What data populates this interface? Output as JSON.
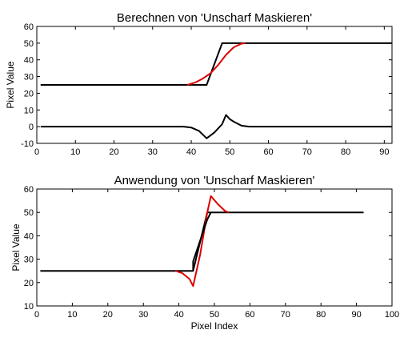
{
  "chart_data": [
    {
      "type": "line",
      "title": "Berechnen von 'Unscharf Maskieren'",
      "xlabel": "",
      "ylabel": "Pixel Value",
      "xlim": [
        0,
        92
      ],
      "ylim": [
        -10,
        60
      ],
      "xticks": [
        0,
        10,
        20,
        30,
        40,
        50,
        60,
        70,
        80,
        90
      ],
      "yticks": [
        -10,
        0,
        10,
        20,
        30,
        40,
        50,
        60
      ],
      "grid": false,
      "series": [
        {
          "color": "#000000",
          "x": [
            1,
            44,
            48,
            92
          ],
          "y": [
            25,
            25,
            50,
            50
          ]
        },
        {
          "color": "#dd0000",
          "x": [
            39,
            41,
            43,
            45,
            47,
            49,
            51,
            53,
            54
          ],
          "y": [
            25,
            26.4,
            28.8,
            32,
            37,
            43,
            47.5,
            49.7,
            50
          ]
        },
        {
          "color": "#000000",
          "x": [
            1,
            38,
            40,
            42,
            44,
            46,
            48,
            49,
            50,
            51,
            53,
            55,
            92
          ],
          "y": [
            0,
            0,
            -0.5,
            -2.5,
            -7,
            -3.5,
            1.5,
            7,
            4.5,
            3,
            0.6,
            0,
            0
          ]
        }
      ]
    },
    {
      "type": "line",
      "title": "Anwendung von 'Unscharf Maskieren'",
      "xlabel": "Pixel Index",
      "ylabel": "Pixel Value",
      "xlim": [
        0,
        100
      ],
      "ylim": [
        10,
        60
      ],
      "xticks": [
        0,
        10,
        20,
        30,
        40,
        50,
        60,
        70,
        80,
        90,
        100
      ],
      "yticks": [
        10,
        20,
        30,
        40,
        50,
        60
      ],
      "grid": false,
      "series": [
        {
          "color": "#000000",
          "x": [
            1,
            44,
            48,
            92
          ],
          "y": [
            25,
            25,
            50,
            50
          ]
        },
        {
          "color": "#dd0000",
          "x": [
            39,
            41,
            43,
            44,
            46,
            48,
            49,
            51,
            53,
            54
          ],
          "y": [
            25,
            24,
            21.5,
            18.5,
            32,
            50,
            57,
            53.5,
            50.6,
            50
          ]
        },
        {
          "color": "#000000",
          "x": [
            44,
            44,
            48,
            49
          ],
          "y": [
            25,
            29,
            47,
            50
          ]
        }
      ]
    }
  ]
}
